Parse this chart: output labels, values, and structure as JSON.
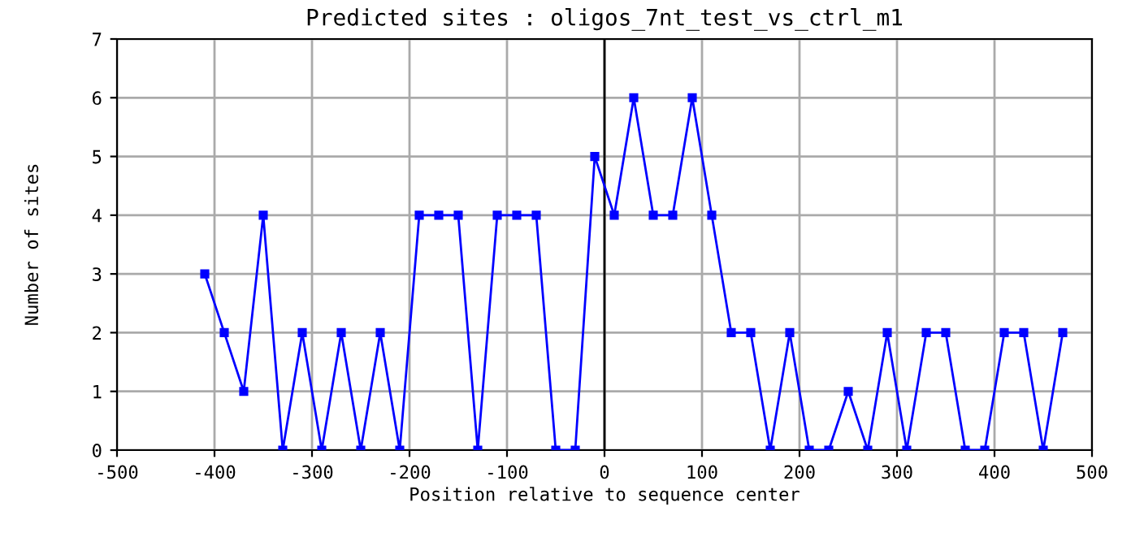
{
  "chart_data": {
    "type": "line",
    "title": "Predicted sites : oligos_7nt_test_vs_ctrl_m1",
    "xlabel": "Position relative to sequence center",
    "ylabel": "Number of sites",
    "x": [
      -410,
      -390,
      -370,
      -350,
      -330,
      -310,
      -290,
      -270,
      -250,
      -230,
      -210,
      -190,
      -170,
      -150,
      -130,
      -110,
      -90,
      -70,
      -50,
      -30,
      -10,
      10,
      30,
      50,
      70,
      90,
      110,
      130,
      150,
      170,
      190,
      210,
      230,
      250,
      270,
      290,
      310,
      330,
      350,
      370,
      390,
      410,
      430,
      450,
      470
    ],
    "series": [
      {
        "color": "#0000ff",
        "values": [
          3,
          2,
          1,
          4,
          0,
          2,
          0,
          2,
          0,
          2,
          0,
          4,
          4,
          4,
          0,
          4,
          4,
          4,
          0,
          0,
          5,
          4,
          6,
          4,
          4,
          6,
          4,
          2,
          2,
          0,
          2,
          0,
          0,
          1,
          0,
          2,
          0,
          2,
          2,
          0,
          0,
          2,
          2,
          0,
          2
        ]
      }
    ],
    "xlim": [
      -500,
      500
    ],
    "xticks": [
      -500,
      -400,
      -300,
      -200,
      -100,
      0,
      100,
      200,
      300,
      400,
      500
    ],
    "ylim": [
      0,
      7
    ],
    "yticks": [
      0,
      1,
      2,
      3,
      4,
      5,
      6,
      7
    ],
    "ref_lines": [
      {
        "axis": "x",
        "value": 0,
        "color": "#000000"
      }
    ],
    "grid": true,
    "marker": "square",
    "line_style": "solid"
  }
}
